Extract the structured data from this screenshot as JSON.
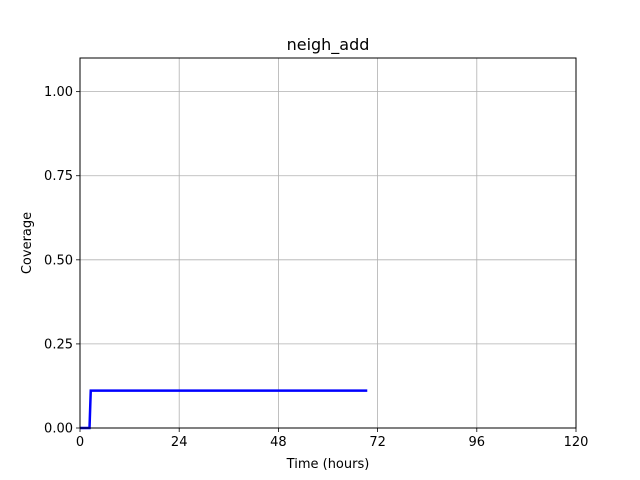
{
  "chart_data": {
    "type": "line",
    "title": "neigh_add",
    "xlabel": "Time (hours)",
    "ylabel": "Coverage",
    "xlim": [
      0,
      120
    ],
    "ylim": [
      0,
      1.1
    ],
    "xticks": [
      0,
      24,
      48,
      72,
      96,
      120
    ],
    "xtick_labels": [
      "0",
      "24",
      "48",
      "72",
      "96",
      "120"
    ],
    "yticks": [
      0,
      0.25,
      0.5,
      0.75,
      1.0
    ],
    "ytick_labels": [
      "0.00",
      "0.25",
      "0.50",
      "0.75",
      "1.00"
    ],
    "grid": true,
    "series": [
      {
        "color": "#0000ff",
        "x": [
          0,
          2.3,
          2.6,
          69.5
        ],
        "y": [
          0,
          0,
          0.111,
          0.111
        ]
      }
    ]
  }
}
